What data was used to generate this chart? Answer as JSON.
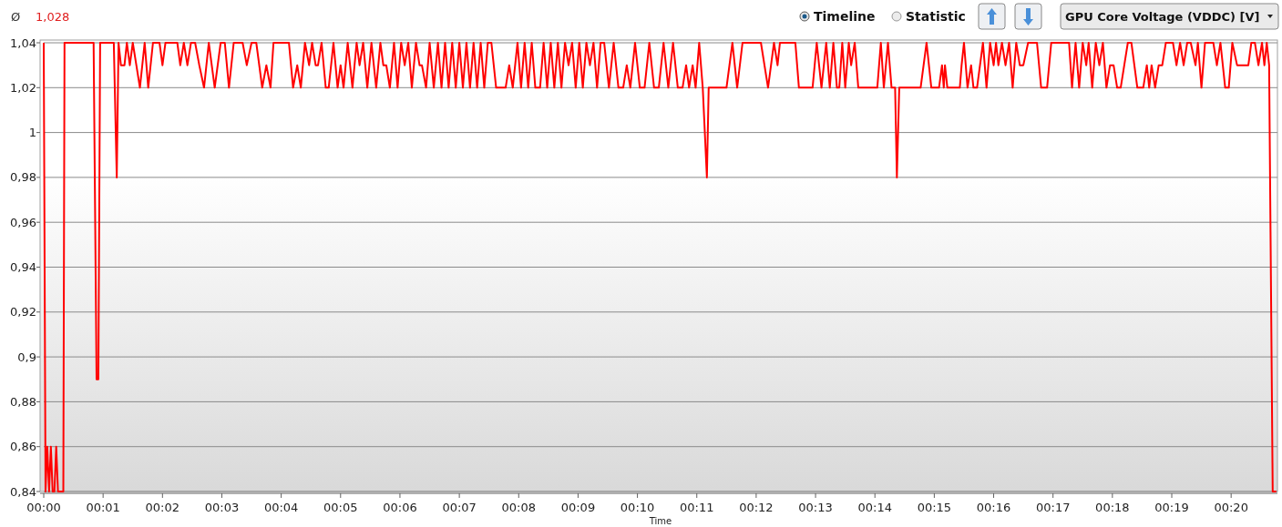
{
  "chart_data": {
    "type": "line",
    "title": "GPU Core Voltage (VDDC) [V]",
    "xlabel": "Time",
    "annotations": [
      "Ø",
      "1,028",
      "Timeline",
      "Statistic"
    ],
    "xlim": [
      0,
      20.78
    ],
    "xticks": [
      {
        "value": 0,
        "label": "00:00"
      },
      {
        "value": 1,
        "label": "00:01"
      },
      {
        "value": 2,
        "label": "00:02"
      },
      {
        "value": 3,
        "label": "00:03"
      },
      {
        "value": 4,
        "label": "00:04"
      },
      {
        "value": 5,
        "label": "00:05"
      },
      {
        "value": 6,
        "label": "00:06"
      },
      {
        "value": 7,
        "label": "00:07"
      },
      {
        "value": 8,
        "label": "00:08"
      },
      {
        "value": 9,
        "label": "00:09"
      },
      {
        "value": 10,
        "label": "00:10"
      },
      {
        "value": 11,
        "label": "00:11"
      },
      {
        "value": 12,
        "label": "00:12"
      },
      {
        "value": 13,
        "label": "00:13"
      },
      {
        "value": 14,
        "label": "00:14"
      },
      {
        "value": 15,
        "label": "00:15"
      },
      {
        "value": 16,
        "label": "00:16"
      },
      {
        "value": 17,
        "label": "00:17"
      },
      {
        "value": 18,
        "label": "00:18"
      },
      {
        "value": 19,
        "label": "00:19"
      },
      {
        "value": 20,
        "label": "00:20"
      }
    ],
    "ylim": [
      0.84,
      1.04
    ],
    "yticks": [
      {
        "value": 0.84,
        "label": "0,84"
      },
      {
        "value": 0.86,
        "label": "0,86"
      },
      {
        "value": 0.88,
        "label": "0,88"
      },
      {
        "value": 0.9,
        "label": "0,9"
      },
      {
        "value": 0.92,
        "label": "0,92"
      },
      {
        "value": 0.94,
        "label": "0,94"
      },
      {
        "value": 0.96,
        "label": "0,96"
      },
      {
        "value": 0.98,
        "label": "0,98"
      },
      1,
      {
        "value": 1.02,
        "label": "1,02"
      },
      {
        "value": 1.04,
        "label": "1,04"
      }
    ],
    "grid": "y",
    "marker": "none",
    "line_style": "solid",
    "series": [
      {
        "color": "#ff0000",
        "x": [
          0,
          0.03,
          0.06,
          0.09,
          0.12,
          0.15,
          0.18,
          0.21,
          0.24,
          0.27,
          0.33,
          0.35,
          0.84,
          0.89,
          0.92,
          0.95,
          1.18,
          1.23,
          1.26,
          1.3,
          1.36,
          1.4,
          1.45,
          1.5,
          1.56,
          1.62,
          1.7,
          1.76,
          1.84,
          1.95,
          2.0,
          2.05,
          2.25,
          2.3,
          2.36,
          2.42,
          2.48,
          2.55,
          2.62,
          2.7,
          2.78,
          2.88,
          2.98,
          3.05,
          3.12,
          3.2,
          3.35,
          3.42,
          3.5,
          3.58,
          3.68,
          3.75,
          3.82,
          3.87,
          4.13,
          4.2,
          4.27,
          4.33,
          4.4,
          4.47,
          4.52,
          4.58,
          4.62,
          4.68,
          4.75,
          4.8,
          4.88,
          4.95,
          5.0,
          5.05,
          5.12,
          5.2,
          5.27,
          5.32,
          5.38,
          5.45,
          5.52,
          5.6,
          5.67,
          5.72,
          5.77,
          5.83,
          5.9,
          5.96,
          6.02,
          6.08,
          6.14,
          6.2,
          6.27,
          6.33,
          6.37,
          6.44,
          6.5,
          6.57,
          6.64,
          6.7,
          6.76,
          6.82,
          6.88,
          6.94,
          7.0,
          7.06,
          7.12,
          7.18,
          7.24,
          7.3,
          7.36,
          7.42,
          7.48,
          7.54,
          7.62,
          7.78,
          7.84,
          7.9,
          7.98,
          8.04,
          8.1,
          8.16,
          8.22,
          8.28,
          8.36,
          8.42,
          8.48,
          8.54,
          8.6,
          8.66,
          8.72,
          8.78,
          8.84,
          8.9,
          8.96,
          9.02,
          9.08,
          9.14,
          9.2,
          9.26,
          9.32,
          9.38,
          9.44,
          9.52,
          9.6,
          9.68,
          9.76,
          9.82,
          9.88,
          9.96,
          10.04,
          10.12,
          10.2,
          10.28,
          10.36,
          10.44,
          10.52,
          10.6,
          10.68,
          10.76,
          10.82,
          10.87,
          10.93,
          10.98,
          11.04,
          11.1,
          11.17,
          11.2,
          11.5,
          11.6,
          11.68,
          11.77,
          12.08,
          12.2,
          12.3,
          12.36,
          12.4,
          12.66,
          12.72,
          12.95,
          13.02,
          13.1,
          13.18,
          13.24,
          13.3,
          13.36,
          13.4,
          13.45,
          13.5,
          13.56,
          13.6,
          13.66,
          13.72,
          13.77,
          14.04,
          14.1,
          14.15,
          14.22,
          14.28,
          14.34,
          14.37,
          14.41,
          14.77,
          14.82,
          14.87,
          14.95,
          15.08,
          15.13,
          15.16,
          15.18,
          15.22,
          15.43,
          15.46,
          15.5,
          15.56,
          15.62,
          15.66,
          15.72,
          15.82,
          15.88,
          15.94,
          16.0,
          16.04,
          16.08,
          16.14,
          16.2,
          16.26,
          16.32,
          16.38,
          16.44,
          16.5,
          16.58,
          16.73,
          16.8,
          16.9,
          16.97,
          17.04,
          17.27,
          17.32,
          17.38,
          17.44,
          17.5,
          17.56,
          17.6,
          17.66,
          17.72,
          17.78,
          17.84,
          17.9,
          17.96,
          18.02,
          18.08,
          18.14,
          18.2,
          18.26,
          18.32,
          18.42,
          18.52,
          18.58,
          18.62,
          18.66,
          18.72,
          18.78,
          18.84,
          18.9,
          19.02,
          19.08,
          19.14,
          19.2,
          19.26,
          19.32,
          19.4,
          19.44,
          19.5,
          19.56,
          19.7,
          19.76,
          19.82,
          19.9,
          19.96,
          20.02,
          20.1,
          20.29,
          20.34,
          20.4,
          20.46,
          20.52,
          20.56,
          20.6,
          20.64,
          20.7,
          20.76
        ],
        "values": [
          1.04,
          0.84,
          0.86,
          0.84,
          0.86,
          0.84,
          0.84,
          0.86,
          0.84,
          0.84,
          0.84,
          1.04,
          1.04,
          0.89,
          0.89,
          1.04,
          1.04,
          0.98,
          1.04,
          1.03,
          1.03,
          1.04,
          1.03,
          1.04,
          1.03,
          1.02,
          1.04,
          1.02,
          1.04,
          1.04,
          1.03,
          1.04,
          1.04,
          1.03,
          1.04,
          1.03,
          1.04,
          1.04,
          1.03,
          1.02,
          1.04,
          1.02,
          1.04,
          1.04,
          1.02,
          1.04,
          1.04,
          1.03,
          1.04,
          1.04,
          1.02,
          1.03,
          1.02,
          1.04,
          1.04,
          1.02,
          1.03,
          1.02,
          1.04,
          1.03,
          1.04,
          1.03,
          1.03,
          1.04,
          1.02,
          1.02,
          1.04,
          1.02,
          1.03,
          1.02,
          1.04,
          1.02,
          1.04,
          1.03,
          1.04,
          1.02,
          1.04,
          1.02,
          1.04,
          1.03,
          1.03,
          1.02,
          1.04,
          1.02,
          1.04,
          1.03,
          1.04,
          1.02,
          1.04,
          1.03,
          1.03,
          1.02,
          1.04,
          1.02,
          1.04,
          1.02,
          1.04,
          1.02,
          1.04,
          1.02,
          1.04,
          1.02,
          1.04,
          1.02,
          1.04,
          1.02,
          1.04,
          1.02,
          1.04,
          1.04,
          1.02,
          1.02,
          1.03,
          1.02,
          1.04,
          1.02,
          1.04,
          1.02,
          1.04,
          1.02,
          1.02,
          1.04,
          1.02,
          1.04,
          1.02,
          1.04,
          1.02,
          1.04,
          1.03,
          1.04,
          1.02,
          1.04,
          1.02,
          1.04,
          1.03,
          1.04,
          1.02,
          1.04,
          1.04,
          1.02,
          1.04,
          1.02,
          1.02,
          1.03,
          1.02,
          1.04,
          1.02,
          1.02,
          1.04,
          1.02,
          1.02,
          1.04,
          1.02,
          1.04,
          1.02,
          1.02,
          1.03,
          1.02,
          1.03,
          1.02,
          1.04,
          1.02,
          0.98,
          1.02,
          1.02,
          1.04,
          1.02,
          1.04,
          1.04,
          1.02,
          1.04,
          1.03,
          1.04,
          1.04,
          1.02,
          1.02,
          1.04,
          1.02,
          1.04,
          1.02,
          1.04,
          1.02,
          1.02,
          1.04,
          1.02,
          1.04,
          1.03,
          1.04,
          1.02,
          1.02,
          1.02,
          1.04,
          1.02,
          1.04,
          1.02,
          1.02,
          0.98,
          1.02,
          1.02,
          1.03,
          1.04,
          1.02,
          1.02,
          1.03,
          1.02,
          1.03,
          1.02,
          1.02,
          1.03,
          1.04,
          1.02,
          1.03,
          1.02,
          1.02,
          1.04,
          1.02,
          1.04,
          1.03,
          1.04,
          1.03,
          1.04,
          1.03,
          1.04,
          1.02,
          1.04,
          1.03,
          1.03,
          1.04,
          1.04,
          1.02,
          1.02,
          1.04,
          1.04,
          1.04,
          1.02,
          1.04,
          1.02,
          1.04,
          1.03,
          1.04,
          1.02,
          1.04,
          1.03,
          1.04,
          1.02,
          1.03,
          1.03,
          1.02,
          1.02,
          1.03,
          1.04,
          1.04,
          1.02,
          1.02,
          1.03,
          1.02,
          1.03,
          1.02,
          1.03,
          1.03,
          1.04,
          1.04,
          1.03,
          1.04,
          1.03,
          1.04,
          1.04,
          1.03,
          1.04,
          1.02,
          1.04,
          1.04,
          1.03,
          1.04,
          1.02,
          1.02,
          1.04,
          1.03,
          1.03,
          1.04,
          1.04,
          1.03,
          1.04,
          1.03,
          1.04,
          1.03,
          0.84,
          0.84
        ]
      }
    ]
  }
}
